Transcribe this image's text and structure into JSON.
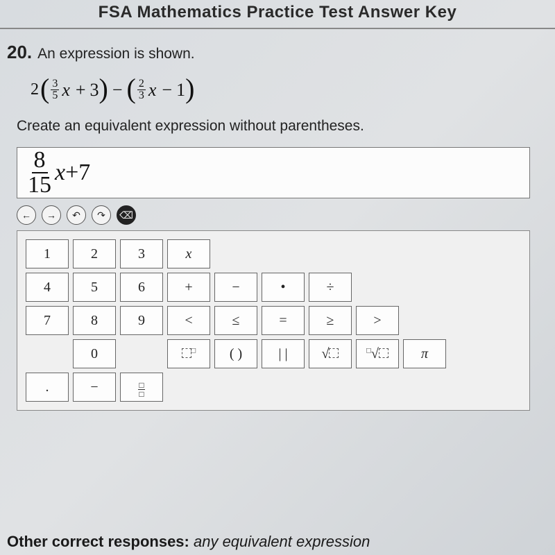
{
  "header": {
    "title": "FSA Mathematics Practice Test Answer Key"
  },
  "question": {
    "number": "20.",
    "prompt": "An expression is shown.",
    "expression": {
      "leading_coef": "2",
      "group1": {
        "frac_num": "3",
        "frac_den": "5",
        "var": "x",
        "op": "+",
        "const": "3"
      },
      "between_op": "−",
      "group2": {
        "frac_num": "2",
        "frac_den": "3",
        "var": "x",
        "op": "−",
        "const": "1"
      }
    },
    "instruction": "Create an equivalent expression without parentheses."
  },
  "answer": {
    "frac_num": "8",
    "frac_den": "15",
    "var": "x",
    "tail": "+7"
  },
  "toolbar": {
    "buttons": [
      {
        "name": "left-arrow-icon",
        "glyph": "←"
      },
      {
        "name": "right-arrow-icon",
        "glyph": "→"
      },
      {
        "name": "undo-icon",
        "glyph": "↶"
      },
      {
        "name": "redo-icon",
        "glyph": "↷"
      },
      {
        "name": "backspace-icon",
        "glyph": "⌫",
        "dark": true
      }
    ]
  },
  "keypad": {
    "rows": [
      [
        {
          "t": "1"
        },
        {
          "t": "2"
        },
        {
          "t": "3"
        },
        {
          "t": "x",
          "it": true
        }
      ],
      [
        {
          "t": "4"
        },
        {
          "t": "5"
        },
        {
          "t": "6"
        },
        {
          "t": "+"
        },
        {
          "t": "−"
        },
        {
          "t": "•"
        },
        {
          "t": "÷"
        }
      ],
      [
        {
          "t": "7"
        },
        {
          "t": "8"
        },
        {
          "t": "9"
        },
        {
          "t": "<"
        },
        {
          "t": "≤"
        },
        {
          "t": "="
        },
        {
          "t": "≥"
        },
        {
          "t": ">"
        }
      ],
      [
        {
          "empty": true
        },
        {
          "t": "0"
        },
        {
          "empty": true
        },
        {
          "sp": "power"
        },
        {
          "t": "( )"
        },
        {
          "t": "| |"
        },
        {
          "sp": "sqrt"
        },
        {
          "sp": "nroot"
        },
        {
          "t": "π",
          "it": true
        }
      ],
      [
        {
          "t": "."
        },
        {
          "t": "−"
        },
        {
          "sp": "frac"
        }
      ]
    ]
  },
  "footer": {
    "bold": "Other correct responses:",
    "italic": " any equivalent expression"
  },
  "colors": {
    "bg_gradient_from": "#d8dce0",
    "bg_gradient_to": "#cfd3d7",
    "text": "#222222",
    "border": "#777777",
    "key_bg": "#fdfdfd",
    "panel_bg": "#f0f0f0"
  }
}
